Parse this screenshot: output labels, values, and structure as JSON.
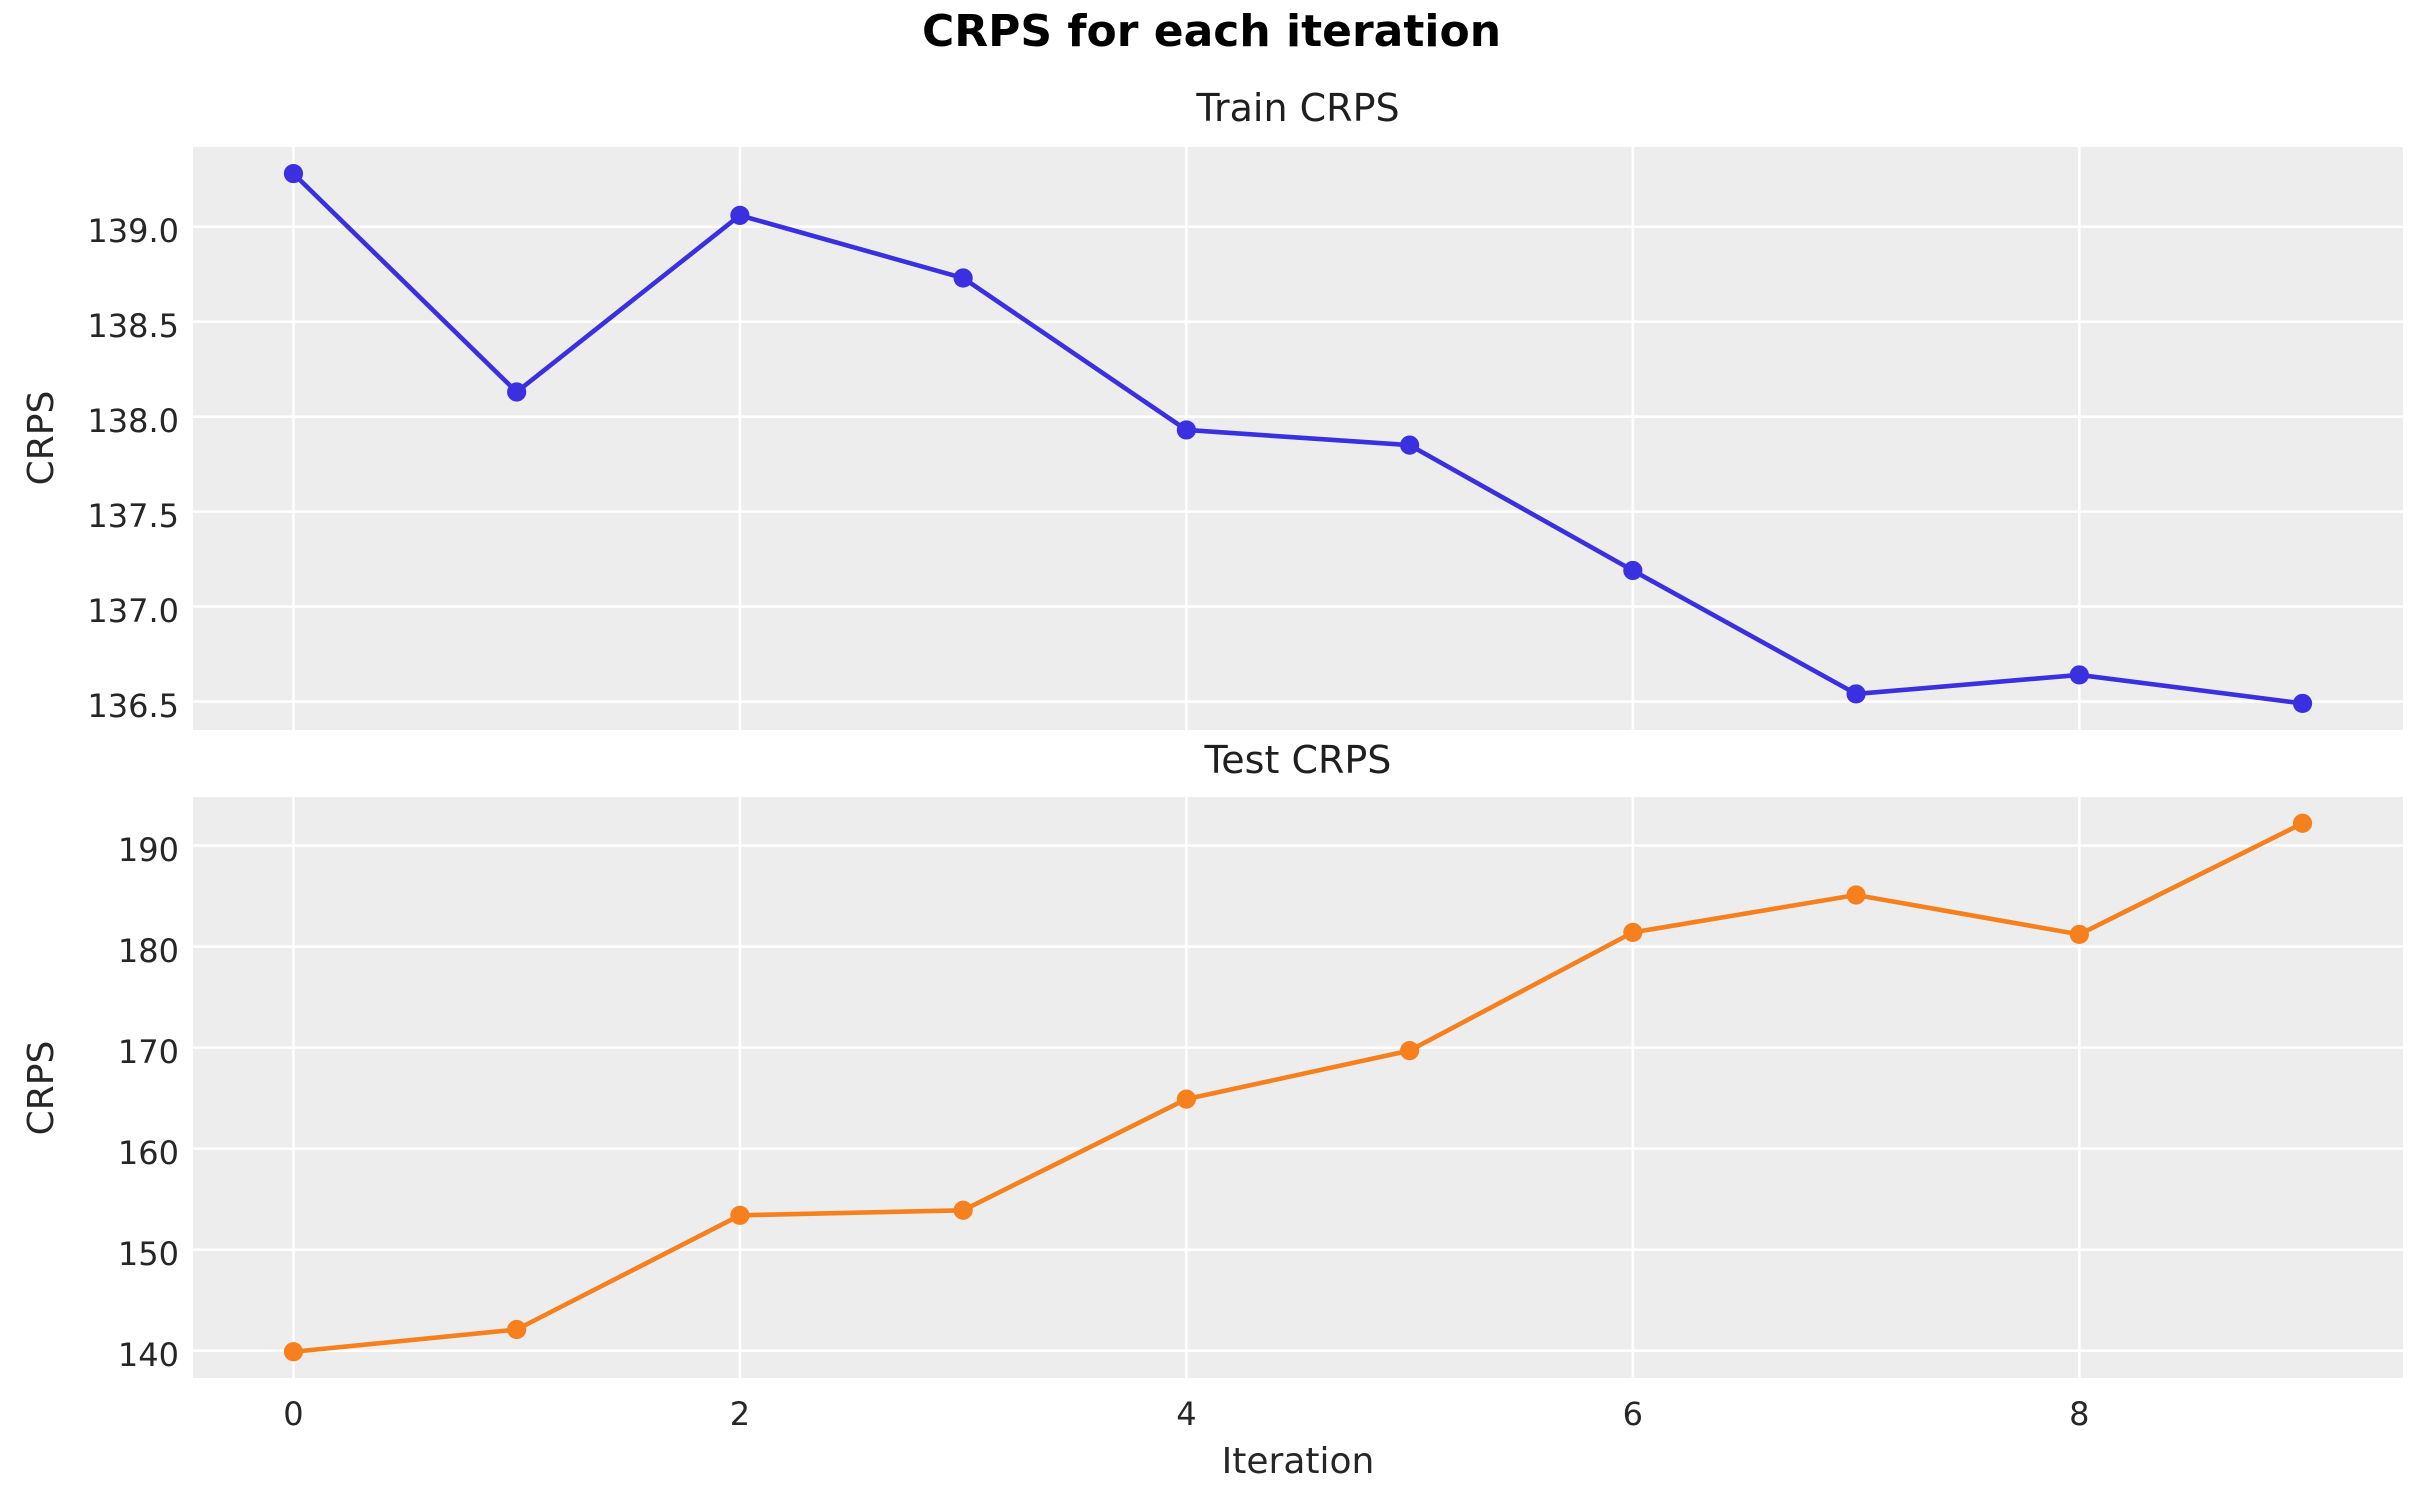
{
  "figure": {
    "bg": "#ffffff",
    "plot_bg": "#ededed",
    "grid_color": "#ffffff",
    "tick_color": "#262626",
    "title_color": "#000000"
  },
  "suptitle": "CRPS for each iteration",
  "xlabel": "Iteration",
  "xticks": {
    "values": [
      0,
      2,
      4,
      6,
      8
    ],
    "labels": [
      "0",
      "2",
      "4",
      "6",
      "8"
    ]
  },
  "chart_data": [
    {
      "type": "line",
      "title": "Train CRPS",
      "ylabel": "CRPS",
      "series_name": "train",
      "color": "#3a30e0",
      "marker": "circle",
      "grid": true,
      "legend": null,
      "x": [
        0,
        1,
        2,
        3,
        4,
        5,
        6,
        7,
        8,
        9
      ],
      "y": [
        139.28,
        138.13,
        139.06,
        138.73,
        137.93,
        137.85,
        137.19,
        136.54,
        136.64,
        136.49
      ],
      "xlim": [
        -0.45,
        9.45
      ],
      "ylim": [
        136.35,
        139.42
      ],
      "yticks": [
        139.0,
        138.5,
        138.0,
        137.5,
        137.0,
        136.5
      ],
      "ytick_labels": [
        "139.0",
        "138.5",
        "138.0",
        "137.5",
        "137.0",
        "136.5"
      ]
    },
    {
      "type": "line",
      "title": "Test CRPS",
      "ylabel": "CRPS",
      "series_name": "test",
      "color": "#f6801d",
      "marker": "circle",
      "grid": true,
      "legend": null,
      "x": [
        0,
        1,
        2,
        3,
        4,
        5,
        6,
        7,
        8,
        9
      ],
      "y": [
        139.9,
        142.1,
        153.4,
        153.9,
        164.9,
        169.7,
        181.4,
        185.1,
        181.2,
        192.2
      ],
      "xlim": [
        -0.45,
        9.45
      ],
      "ylim": [
        137.3,
        194.8
      ],
      "yticks": [
        190,
        180,
        170,
        160,
        150,
        140
      ],
      "ytick_labels": [
        "190",
        "180",
        "170",
        "160",
        "150",
        "140"
      ]
    }
  ]
}
